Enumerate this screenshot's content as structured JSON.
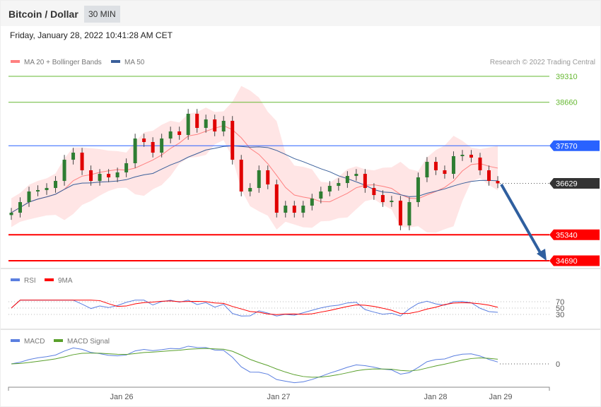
{
  "header": {
    "title": "Bitcoin / Dollar",
    "timeframe": "30 MIN",
    "datetime": "Friday, January 28, 2022 10:41:28 AM CET"
  },
  "legend": {
    "ma20": "MA 20 + Bollinger Bands",
    "ma50": "MA 50",
    "credit": "Research © 2022 Trading Central",
    "rsi": "RSI",
    "rsi_ma": "9MA",
    "macd": "MACD",
    "macd_signal": "MACD Signal"
  },
  "colors": {
    "ma20": "#ff8080",
    "ma50": "#3a5f9a",
    "resistance_green": "#66b832",
    "pivot": "#2962ff",
    "support": "#ff0000",
    "last": "#333333",
    "up": "#2e7d32",
    "down": "#e00000",
    "rsi": "#5b7fe0",
    "macd": "#5b7fe0",
    "signal": "#5aa02c"
  },
  "chart_data": {
    "type": "candlestick",
    "levels": [
      {
        "value": 39310,
        "label": "39310",
        "kind": "resistance"
      },
      {
        "value": 38660,
        "label": "38660",
        "kind": "resistance"
      },
      {
        "value": 37570,
        "label": "37570",
        "kind": "pivot"
      },
      {
        "value": 36629,
        "label": "36629",
        "kind": "last"
      },
      {
        "value": 35340,
        "label": "35340",
        "kind": "support"
      },
      {
        "value": 34690,
        "label": "34690",
        "kind": "support"
      }
    ],
    "closes": [
      35894,
      36159,
      36425,
      36460,
      36513,
      36690,
      37221,
      37398,
      36956,
      36690,
      36867,
      36779,
      36903,
      37133,
      37752,
      37664,
      37398,
      37752,
      37929,
      37841,
      38372,
      38018,
      38230,
      37929,
      38195,
      37221,
      36425,
      36513,
      36956,
      36602,
      35894,
      36071,
      35894,
      36071,
      36248,
      36425,
      36566,
      36637,
      36814,
      36867,
      36513,
      36336,
      36159,
      36195,
      35575,
      36159,
      36779,
      37168,
      36956,
      36867,
      37310,
      37345,
      37274,
      36956,
      36690,
      36629
    ],
    "x_ticks": [
      "Jan 26",
      "Jan 27",
      "Jan 28",
      "Jan 29"
    ],
    "rsi_ticks": [
      "70",
      "50",
      "30"
    ],
    "macd_ticks": [
      "0"
    ],
    "forecast": {
      "direction": "down",
      "target": 34690
    }
  }
}
